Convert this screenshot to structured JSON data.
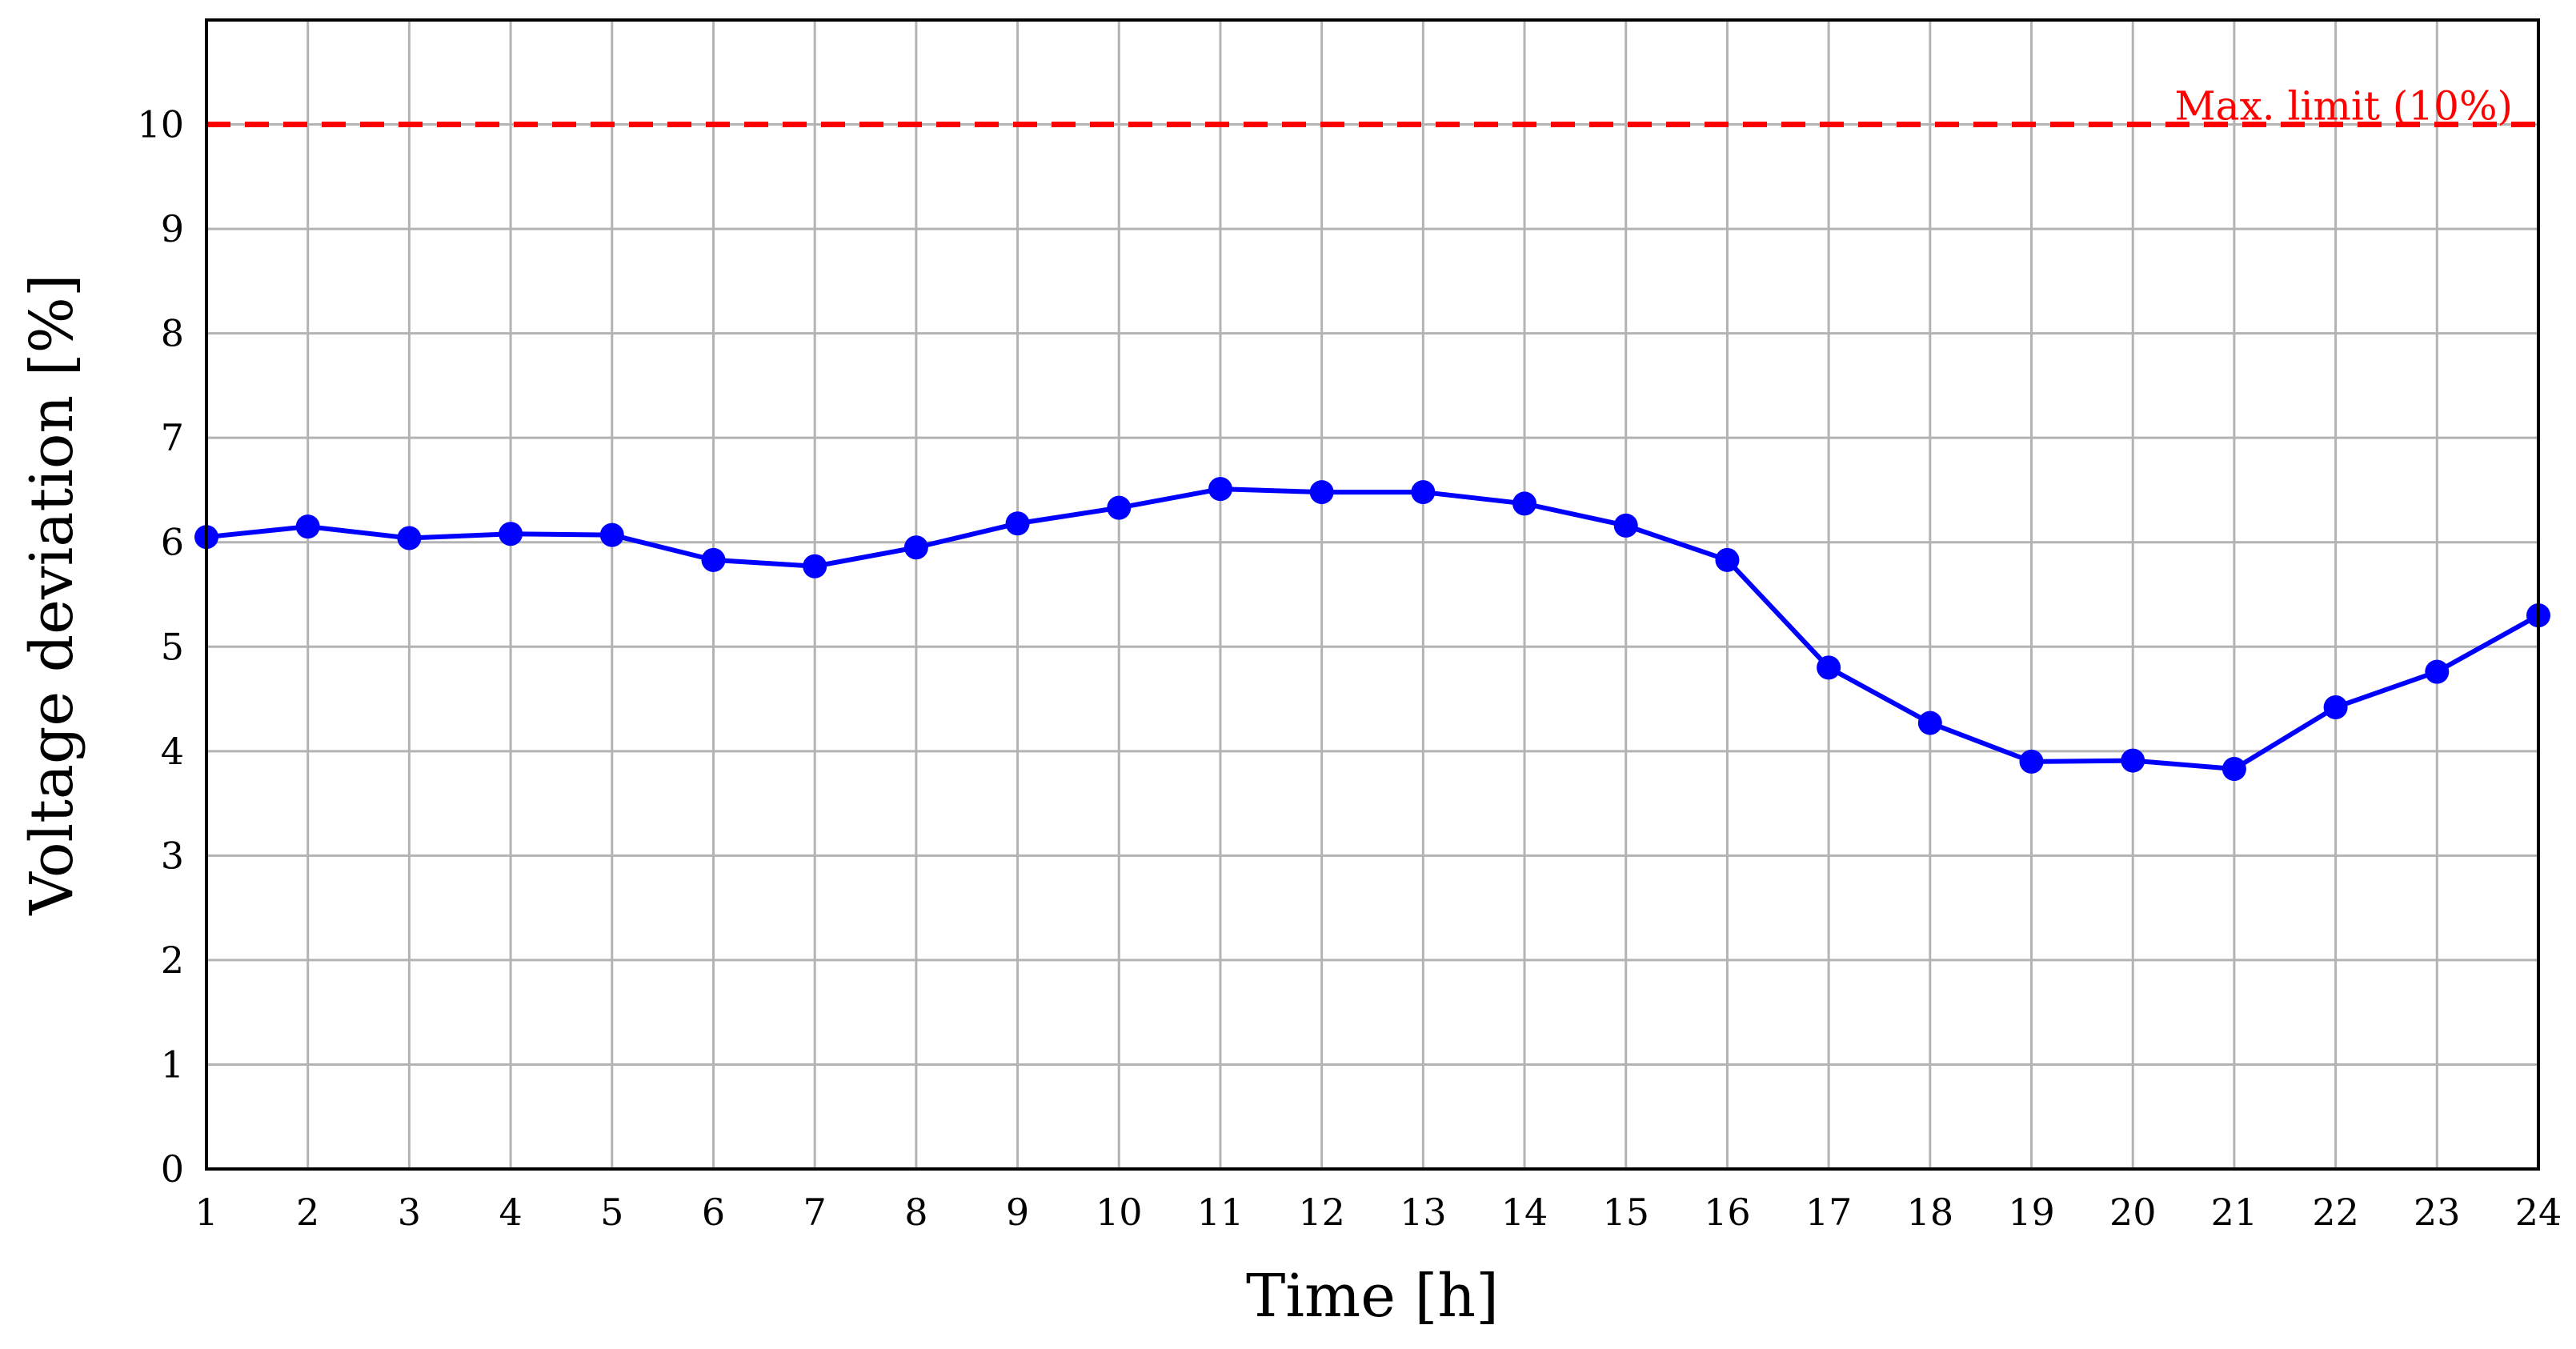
{
  "chart_data": {
    "type": "line",
    "title": "",
    "xlabel": "Time [h]",
    "ylabel": "Voltage deviation [%]",
    "xlim": [
      1,
      24
    ],
    "ylim": [
      0,
      11
    ],
    "xticks": [
      1,
      2,
      3,
      4,
      5,
      6,
      7,
      8,
      9,
      10,
      11,
      12,
      13,
      14,
      15,
      16,
      17,
      18,
      19,
      20,
      21,
      22,
      23,
      24
    ],
    "yticks": [
      0,
      1,
      2,
      3,
      4,
      5,
      6,
      7,
      8,
      9,
      10
    ],
    "grid": true,
    "legend": "none",
    "series": [
      {
        "color": "#0000ff",
        "marker": "circle",
        "x": [
          1,
          2,
          3,
          4,
          5,
          6,
          7,
          8,
          9,
          10,
          11,
          12,
          13,
          14,
          15,
          16,
          17,
          18,
          19,
          20,
          21,
          22,
          23,
          24
        ],
        "y": [
          6.05,
          6.15,
          6.04,
          6.08,
          6.07,
          5.83,
          5.77,
          5.95,
          6.18,
          6.33,
          6.51,
          6.48,
          6.48,
          6.37,
          6.16,
          5.83,
          4.8,
          4.27,
          3.9,
          3.91,
          3.83,
          4.42,
          4.76,
          5.3
        ]
      }
    ],
    "reference_line": {
      "y": 10,
      "label": "Max. limit (10%)",
      "color": "#ff0000",
      "style": "dashed"
    }
  }
}
